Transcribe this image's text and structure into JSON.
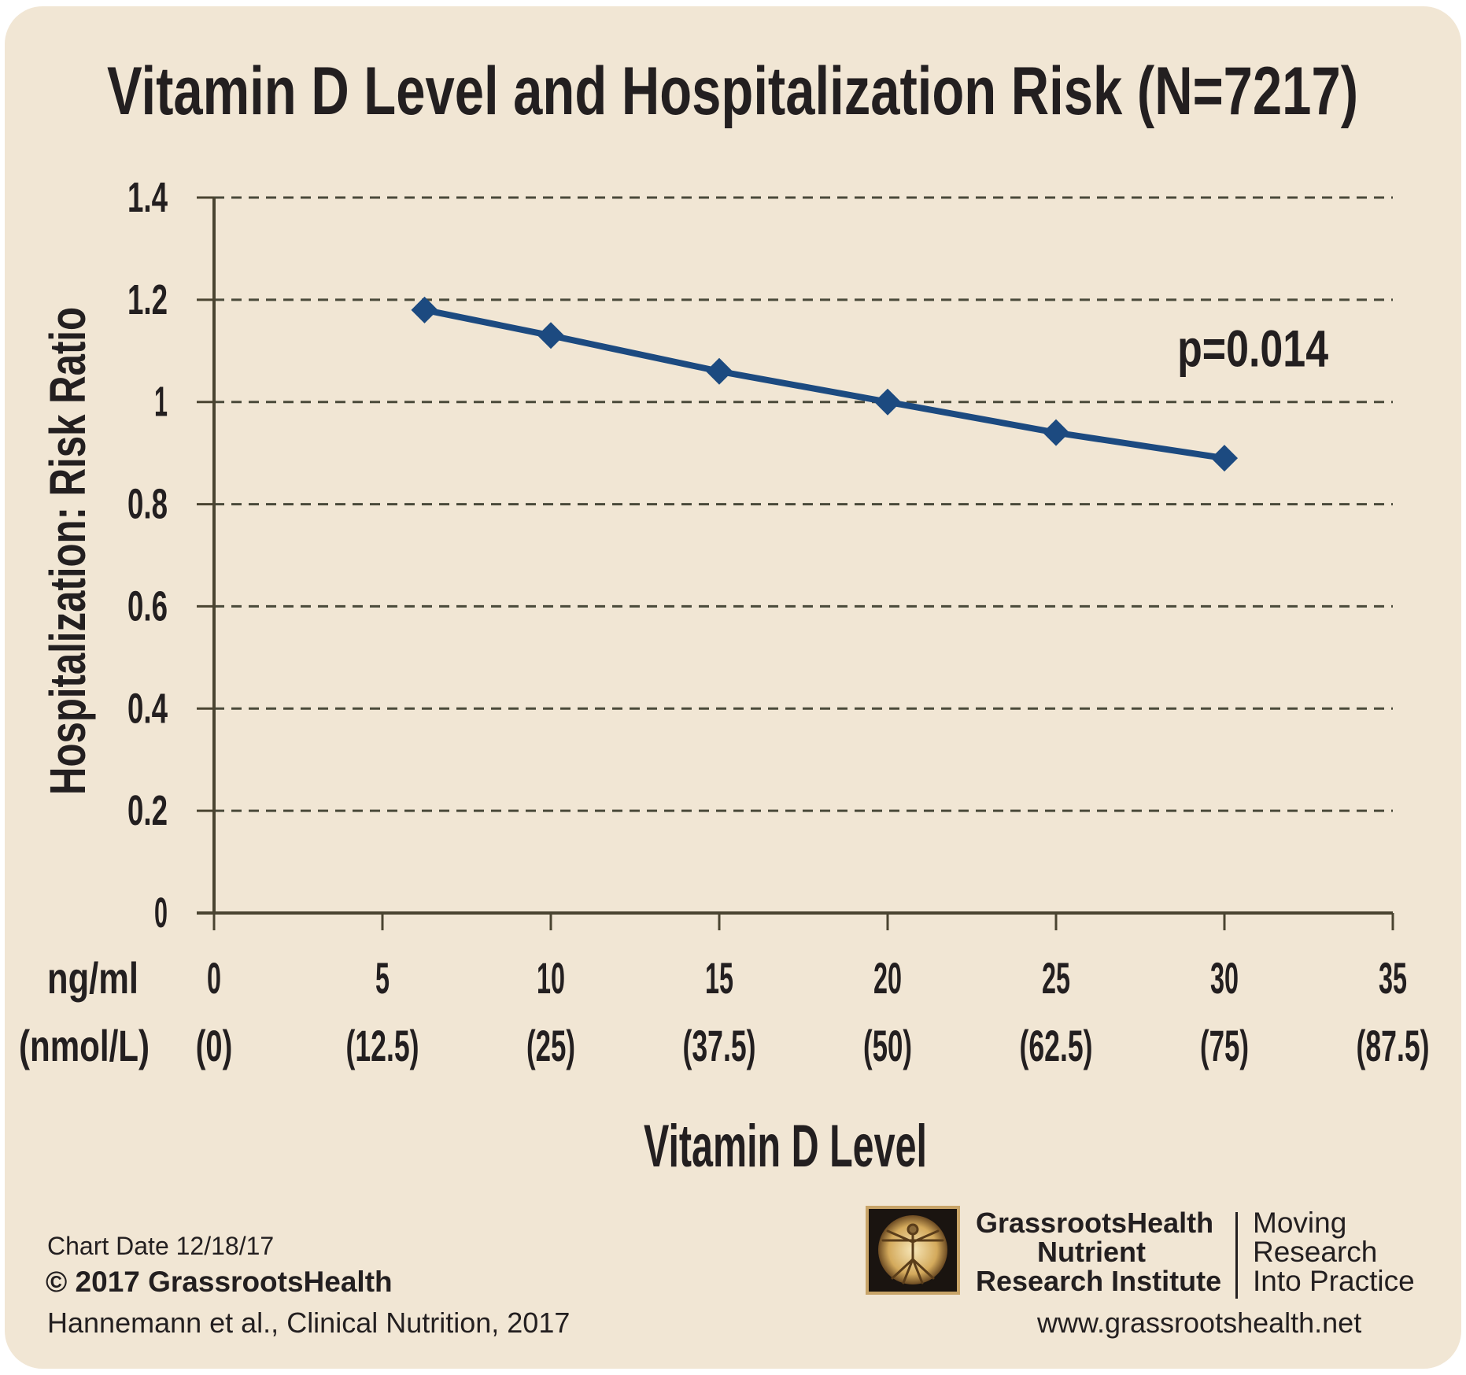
{
  "colors": {
    "background": "#f1e6d4",
    "line": "#1c4a80",
    "grid": "#4a4a3a",
    "axis": "#4a4431",
    "text": "#231f20",
    "logo_frame": "#c8a468"
  },
  "chart_data": {
    "type": "line",
    "title": "Vitamin D  Level and Hospitalization Risk (N=7217)",
    "xlabel": "Vitamin D Level",
    "ylabel": "Hospitalization: Risk Ratio",
    "x_unit_label": "ng/ml",
    "x_unit_label_alt": "(nmol/L)",
    "xlim": [
      0,
      35
    ],
    "ylim": [
      0,
      1.4
    ],
    "grid": true,
    "grid_style": "dashed",
    "x_ticks": [
      {
        "value": 0,
        "label": "0",
        "alt": "(0)"
      },
      {
        "value": 5,
        "label": "5",
        "alt": "(12.5)"
      },
      {
        "value": 10,
        "label": "10",
        "alt": "(25)"
      },
      {
        "value": 15,
        "label": "15",
        "alt": "(37.5)"
      },
      {
        "value": 20,
        "label": "20",
        "alt": "(50)"
      },
      {
        "value": 25,
        "label": "25",
        "alt": "(62.5)"
      },
      {
        "value": 30,
        "label": "30",
        "alt": "(75)"
      },
      {
        "value": 35,
        "label": "35",
        "alt": "(87.5)"
      }
    ],
    "y_ticks": [
      {
        "value": 0,
        "label": "0"
      },
      {
        "value": 0.2,
        "label": "0.2"
      },
      {
        "value": 0.4,
        "label": "0.4"
      },
      {
        "value": 0.6,
        "label": "0.6"
      },
      {
        "value": 0.8,
        "label": "0.8"
      },
      {
        "value": 1.0,
        "label": "1"
      },
      {
        "value": 1.2,
        "label": "1.2"
      },
      {
        "value": 1.4,
        "label": "1.4"
      }
    ],
    "series": [
      {
        "marker": "diamond",
        "points": [
          {
            "x": 6.25,
            "y": 1.18
          },
          {
            "x": 10,
            "y": 1.13
          },
          {
            "x": 15,
            "y": 1.06
          },
          {
            "x": 20,
            "y": 1.0
          },
          {
            "x": 25,
            "y": 0.94
          },
          {
            "x": 30,
            "y": 0.89
          }
        ]
      }
    ],
    "annotations": [
      {
        "text": "p=0.014",
        "x": 28.6,
        "y": 1.07
      }
    ]
  },
  "footer": {
    "chart_date": "Chart Date 12/18/17",
    "copyright": "© 2017 GrassrootsHealth",
    "citation": "Hannemann et al., Clinical Nutrition, 2017",
    "website": "www.grassrootshealth.net"
  },
  "logo": {
    "org_line1": "GrassrootsHealth",
    "org_line2": "Nutrient",
    "org_line3": "Research Institute",
    "motto_line1": "Moving",
    "motto_line2": "Research",
    "motto_line3": "Into Practice",
    "icon": "vitruvian-man-icon"
  }
}
